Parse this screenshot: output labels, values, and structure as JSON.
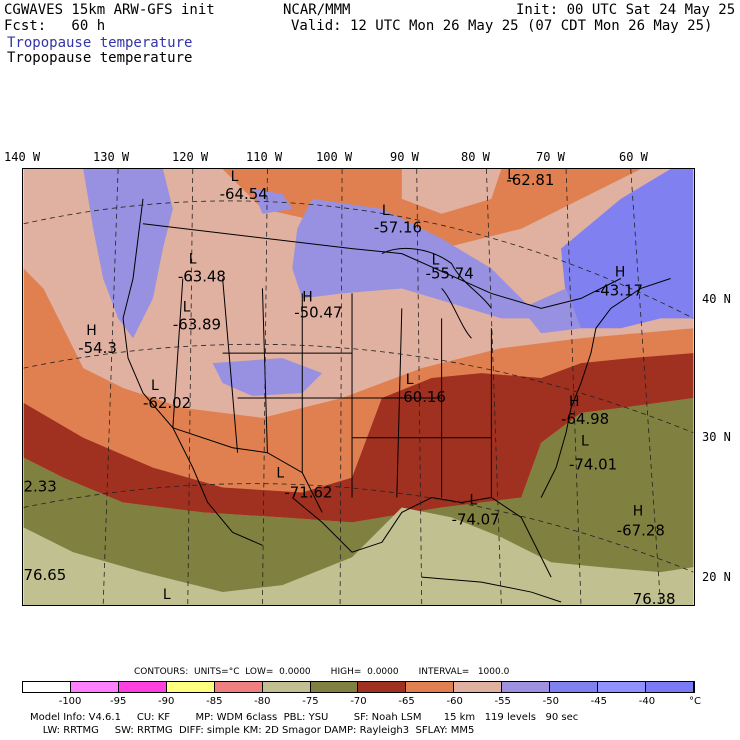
{
  "header": {
    "model": "CGWAVES 15km ARW-GFS init",
    "forecast": "Fcst:   60 h",
    "center": "NCAR/MMM",
    "init": "Init: 00 UTC Sat 24 May 25",
    "valid": "Valid: 12 UTC Mon 26 May 25 (07 CDT Mon 26 May 25)",
    "field_blue": "Tropopause temperature",
    "field_black": "Tropopause temperature"
  },
  "longitudes": [
    "140 W",
    "130 W",
    "120 W",
    "110 W",
    "100 W",
    "90 W",
    "80 W",
    "70 W",
    "60 W"
  ],
  "latitudes": [
    "40 N",
    "30 N",
    "20 N"
  ],
  "labels": {
    "l_pac_nw": "-64.54",
    "l_gl_w": "-57.16",
    "l_gl_e": "-55.74",
    "l_atl_n": "-62.81",
    "h_ne": "-43.17",
    "l_id": "-63.48",
    "l_nv": "-63.89",
    "h_nd": "-50.47",
    "h_ca": "-54.3",
    "l_ut": "-62.02",
    "l_mo": "-60.16",
    "h_va": "-64.98",
    "l_atl": "-74.01",
    "l_tx": "-71.62",
    "l_gulf": "-74.07",
    "h_carib": "-67.28",
    "edge_w": "2.33",
    "edge_sw": "76.65",
    "edge_se": "76.38"
  },
  "legend": {
    "contours_line": "CONTOURS:  UNITS=°C  LOW=  0.0000       HIGH=  0.0000       INTERVAL=   1000.0",
    "colors": [
      "#ffffff",
      "#ff80ff",
      "#ff40e0",
      "#ffff80",
      "#f08080",
      "#c0c090",
      "#808040",
      "#a03020",
      "#e08050",
      "#e0b0a0",
      "#a090e0",
      "#8080f0",
      "#9090ff",
      "#7a7af5"
    ],
    "ticks": [
      "-100",
      "-95",
      "-90",
      "-85",
      "-80",
      "-75",
      "-70",
      "-65",
      "-60",
      "-55",
      "-50",
      "-45",
      "-40",
      "°C"
    ]
  },
  "footer": {
    "line1": "Model Info: V4.6.1     CU: KF        MP: WDM 6class  PBL: YSU        SF: Noah LSM       15 km   119 levels   90 sec",
    "line2": "    LW: RRTMG     SW: RRTMG  DIFF: simple KM: 2D Smagor DAMP: Rayleigh3  SFLAY: MM5"
  }
}
